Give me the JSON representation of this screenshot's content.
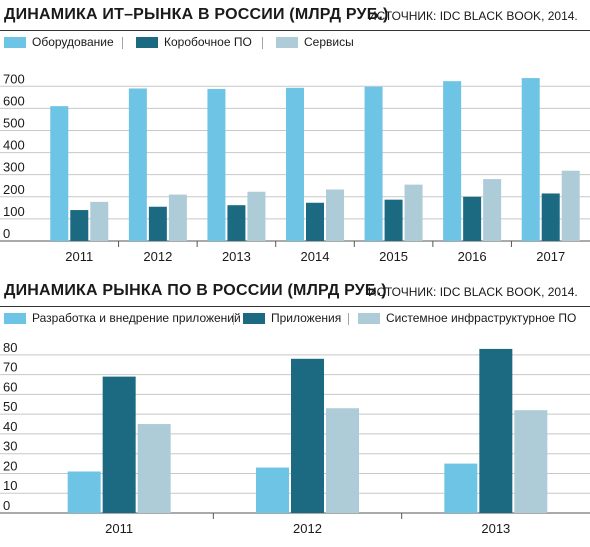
{
  "colors": {
    "series1": "#6ec4e4",
    "series2": "#1b6a82",
    "series3": "#aecbd8",
    "grid": "#c8c8c8",
    "bg": "#ffffff"
  },
  "chart_data": [
    {
      "type": "bar",
      "title": "ДИНАМИКА ИТ–РЫНКА В РОССИИ (МЛРД РУБ.)",
      "source": "ИСТОЧНИК: IDC BLACK BOOK, 2014.",
      "categories": [
        "2011",
        "2012",
        "2013",
        "2014",
        "2015",
        "2016",
        "2017"
      ],
      "series": [
        {
          "name": "Оборудование",
          "values": [
            610,
            690,
            688,
            693,
            698,
            723,
            737
          ]
        },
        {
          "name": "Коробочное ПО",
          "values": [
            140,
            155,
            162,
            173,
            187,
            200,
            215
          ]
        },
        {
          "name": "Сервисы",
          "values": [
            177,
            210,
            223,
            233,
            255,
            280,
            318
          ]
        }
      ],
      "yticks": [
        0,
        100,
        200,
        300,
        400,
        500,
        600,
        700
      ],
      "ylim": [
        0,
        760
      ],
      "grid": true,
      "legend": "top"
    },
    {
      "type": "bar",
      "title": "ДИНАМИКА РЫНКА ПО В РОССИИ (МЛРД РУБ.)",
      "source": "ИСТОЧНИК: IDC BLACK BOOK, 2014.",
      "categories": [
        "2011",
        "2012",
        "2013"
      ],
      "series": [
        {
          "name": "Разработка и внедрение приложений",
          "values": [
            21,
            23,
            25
          ]
        },
        {
          "name": "Приложения",
          "values": [
            69,
            78,
            83
          ]
        },
        {
          "name": "Системное инфраструктурное ПО",
          "values": [
            45,
            53,
            52
          ]
        }
      ],
      "yticks": [
        0,
        10,
        20,
        30,
        40,
        50,
        60,
        70,
        80
      ],
      "ylim": [
        0,
        86
      ],
      "grid": true,
      "legend": "top"
    }
  ]
}
